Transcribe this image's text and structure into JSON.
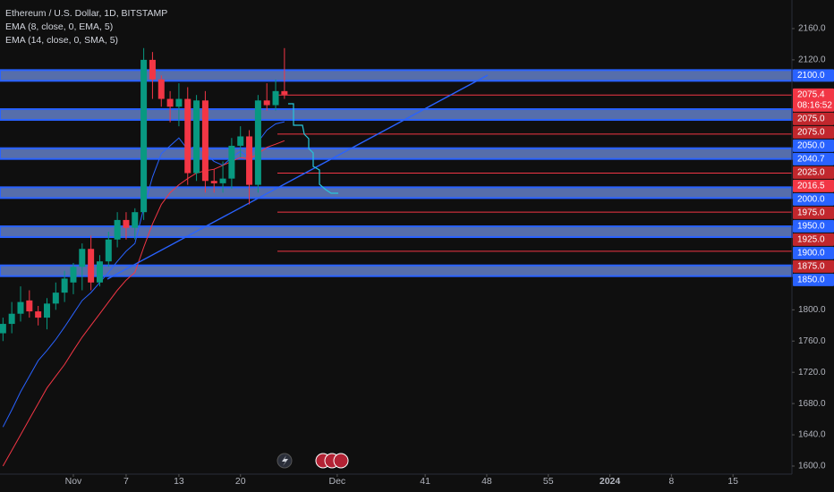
{
  "chart_data": {
    "type": "candlestick",
    "title": "Ethereum / U.S. Dollar, 1D, BITSTAMP",
    "x": [
      -7,
      -6,
      -5,
      -4,
      -3,
      -2,
      -1,
      0,
      1,
      2,
      3,
      4,
      5,
      6,
      7,
      8,
      9,
      10,
      11,
      12,
      13,
      14,
      15,
      16,
      17,
      18,
      19,
      20,
      21,
      22,
      23,
      24,
      25
    ],
    "open": [
      1770,
      1782,
      1795,
      1812,
      1798,
      1790,
      1808,
      1822,
      1835,
      1855,
      1878,
      1835,
      1862,
      1890,
      1915,
      1905,
      1925,
      2120,
      2095,
      2070,
      2060,
      2070,
      1975,
      2068,
      1965,
      1962,
      1968,
      2010,
      2022,
      1960,
      2068,
      2062,
      2080
    ],
    "high": [
      1790,
      1810,
      1830,
      1825,
      1805,
      1815,
      1835,
      1850,
      1860,
      1885,
      1895,
      1870,
      1900,
      1925,
      1925,
      1930,
      2135,
      2130,
      2100,
      2080,
      2090,
      2085,
      2075,
      2080,
      1980,
      1990,
      2020,
      2035,
      2030,
      2075,
      2090,
      2095,
      2135
    ],
    "low": [
      1760,
      1770,
      1785,
      1790,
      1780,
      1775,
      1800,
      1810,
      1820,
      1825,
      1825,
      1830,
      1855,
      1880,
      1890,
      1890,
      1915,
      2070,
      2060,
      2040,
      2035,
      1960,
      1965,
      1950,
      1950,
      1950,
      1955,
      1995,
      1935,
      1950,
      2055,
      2055,
      2070
    ],
    "close": [
      1782,
      1795,
      1810,
      1798,
      1790,
      1808,
      1822,
      1840,
      1855,
      1878,
      1835,
      1862,
      1890,
      1915,
      1905,
      1925,
      2120,
      2095,
      2070,
      2060,
      2070,
      1975,
      2068,
      1965,
      1962,
      1968,
      2010,
      2022,
      1960,
      2068,
      2062,
      2080,
      2075.4
    ],
    "up_color": "#089981",
    "down_color": "#f23645",
    "indicators": [
      {
        "name": "EMA (8, close, 0, EMA, 5)",
        "color": "#2962ff",
        "values": [
          1650,
          1672,
          1695,
          1715,
          1735,
          1748,
          1762,
          1778,
          1795,
          1812,
          1822,
          1835,
          1848,
          1862,
          1875,
          1885,
          1930,
          1970,
          2000,
          2010,
          2020,
          2005,
          2010,
          2000,
          1990,
          1985,
          1995,
          2003,
          1995,
          2015,
          2030,
          2038,
          2040.7
        ]
      },
      {
        "name": "EMA (14, close, 0, SMA, 5)",
        "color": "#f23645",
        "values": [
          1600,
          1620,
          1640,
          1660,
          1680,
          1700,
          1715,
          1730,
          1748,
          1765,
          1780,
          1795,
          1810,
          1825,
          1838,
          1848,
          1880,
          1910,
          1935,
          1950,
          1960,
          1968,
          1975,
          1978,
          1980,
          1985,
          1990,
          1995,
          1993,
          2000,
          2008,
          2012,
          2016.5
        ]
      }
    ],
    "xlim": [
      -7.34,
      82.7
    ],
    "xticks": [
      {
        "value": 1,
        "label": "Nov"
      },
      7,
      13,
      20,
      {
        "value": 31,
        "label": "Dec"
      },
      41,
      48,
      55,
      {
        "value": 62,
        "label": "2024"
      },
      {
        "value": 69,
        "label": "8"
      },
      {
        "value": 76,
        "label": "15"
      }
    ],
    "ylim": [
      1589.7,
      2196.6
    ],
    "yticks": [
      {
        "value": 2160,
        "label": "2160.0"
      },
      {
        "value": 2120,
        "label": "2120.0"
      },
      {
        "value": 1800,
        "label": "1800.0"
      },
      {
        "value": 1760,
        "label": "1760.0"
      },
      {
        "value": 1720,
        "label": "1720.0"
      },
      {
        "value": 1680,
        "label": "1680.0"
      },
      {
        "value": 1640,
        "label": "1640.0"
      },
      {
        "value": 1600,
        "label": "1600.0"
      }
    ],
    "zones": [
      2100,
      2050,
      2000,
      1950,
      1900,
      1850
    ],
    "zone_color": "#2962ff",
    "levels": [
      2075,
      2025,
      1975,
      1925,
      1875
    ],
    "level_color": "#f23645",
    "price_tags": [
      {
        "value": 2100,
        "label": "2100.0",
        "color": "#2962ff"
      },
      {
        "value": 2075.4,
        "label": "2075.4",
        "color": "#f23645",
        "countdown": "08:16:52"
      },
      {
        "value": 2075,
        "label": "2075.0",
        "color": "#c1272d"
      },
      {
        "value": 2075,
        "label": "2075.0",
        "color": "#c1272d"
      },
      {
        "value": 2050,
        "label": "2050.0",
        "color": "#2962ff"
      },
      {
        "value": 2040.7,
        "label": "2040.7",
        "color": "#2962ff"
      },
      {
        "value": 2025,
        "label": "2025.0",
        "color": "#c1272d"
      },
      {
        "value": 2016.5,
        "label": "2016.5",
        "color": "#f23645"
      },
      {
        "value": 2000,
        "label": "2000.0",
        "color": "#2962ff"
      },
      {
        "value": 1975,
        "label": "1975.0",
        "color": "#c1272d"
      },
      {
        "value": 1950,
        "label": "1950.0",
        "color": "#2962ff"
      },
      {
        "value": 1925,
        "label": "1925.0",
        "color": "#c1272d"
      },
      {
        "value": 1900,
        "label": "1900.0",
        "color": "#2962ff"
      },
      {
        "value": 1875,
        "label": "1875.0",
        "color": "#c1272d"
      },
      {
        "value": 1850,
        "label": "1850.0",
        "color": "#2962ff"
      }
    ]
  }
}
